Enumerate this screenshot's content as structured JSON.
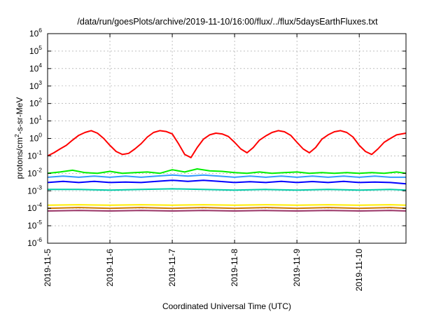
{
  "chart_data": {
    "type": "line",
    "title": "/data/run/goesPlots/archive/2019-11-10/16:00/flux/../flux/5daysEarthFluxes.txt",
    "xlabel": "Coordinated Universal Time (UTC)",
    "ylabel": "protons/cm2-s-sr-MeV",
    "ylabel_parts": {
      "base": "protons/cm",
      "sup": "2",
      "rest": "-s-sr-MeV"
    },
    "x_start": "2019-11-05",
    "x_range_days": [
      0,
      5.75
    ],
    "ylim_exponent": [
      -6,
      6
    ],
    "yscale": "log",
    "grid": true,
    "x_ticks": [
      {
        "day": 0,
        "label": "2019-11-5"
      },
      {
        "day": 1,
        "label": "2019-11-6"
      },
      {
        "day": 2,
        "label": "2019-11-7"
      },
      {
        "day": 3,
        "label": "2019-11-8"
      },
      {
        "day": 4,
        "label": "2019-11-9"
      },
      {
        "day": 5,
        "label": "2019-11-10"
      }
    ],
    "y_ticks": [
      {
        "exp": -6,
        "base": "10",
        "sup": "-6"
      },
      {
        "exp": -5,
        "base": "10",
        "sup": "-5"
      },
      {
        "exp": -4,
        "base": "10",
        "sup": "-4"
      },
      {
        "exp": -3,
        "base": "10",
        "sup": "-3"
      },
      {
        "exp": -2,
        "base": "10",
        "sup": "-2"
      },
      {
        "exp": -1,
        "base": "10",
        "sup": "-1"
      },
      {
        "exp": 0,
        "base": "10",
        "sup": "0"
      },
      {
        "exp": 1,
        "base": "10",
        "sup": "1"
      },
      {
        "exp": 2,
        "base": "10",
        "sup": "2"
      },
      {
        "exp": 3,
        "base": "10",
        "sup": "3"
      },
      {
        "exp": 4,
        "base": "10",
        "sup": "4"
      },
      {
        "exp": 5,
        "base": "10",
        "sup": "5"
      },
      {
        "exp": 6,
        "base": "10",
        "sup": "6"
      }
    ],
    "series": [
      {
        "color": "#ff0000",
        "points": [
          [
            0,
            0.1
          ],
          [
            0.1,
            0.15
          ],
          [
            0.2,
            0.25
          ],
          [
            0.3,
            0.4
          ],
          [
            0.4,
            0.8
          ],
          [
            0.5,
            1.5
          ],
          [
            0.6,
            2.2
          ],
          [
            0.7,
            2.8
          ],
          [
            0.8,
            2.0
          ],
          [
            0.9,
            1.0
          ],
          [
            1.0,
            0.4
          ],
          [
            1.1,
            0.18
          ],
          [
            1.2,
            0.12
          ],
          [
            1.3,
            0.14
          ],
          [
            1.4,
            0.25
          ],
          [
            1.5,
            0.5
          ],
          [
            1.6,
            1.2
          ],
          [
            1.7,
            2.2
          ],
          [
            1.8,
            2.8
          ],
          [
            1.9,
            2.5
          ],
          [
            2.0,
            1.8
          ],
          [
            2.1,
            0.5
          ],
          [
            2.2,
            0.12
          ],
          [
            2.3,
            0.08
          ],
          [
            2.4,
            0.3
          ],
          [
            2.5,
            0.9
          ],
          [
            2.6,
            1.6
          ],
          [
            2.7,
            2.0
          ],
          [
            2.8,
            1.8
          ],
          [
            2.9,
            1.3
          ],
          [
            3.0,
            0.6
          ],
          [
            3.1,
            0.25
          ],
          [
            3.2,
            0.15
          ],
          [
            3.3,
            0.3
          ],
          [
            3.4,
            0.8
          ],
          [
            3.5,
            1.4
          ],
          [
            3.6,
            2.2
          ],
          [
            3.7,
            2.8
          ],
          [
            3.8,
            2.4
          ],
          [
            3.9,
            1.5
          ],
          [
            4.0,
            0.6
          ],
          [
            4.1,
            0.25
          ],
          [
            4.2,
            0.15
          ],
          [
            4.3,
            0.3
          ],
          [
            4.4,
            0.9
          ],
          [
            4.5,
            1.6
          ],
          [
            4.6,
            2.4
          ],
          [
            4.7,
            2.8
          ],
          [
            4.8,
            2.2
          ],
          [
            4.9,
            1.2
          ],
          [
            5.0,
            0.4
          ],
          [
            5.1,
            0.18
          ],
          [
            5.2,
            0.12
          ],
          [
            5.3,
            0.25
          ],
          [
            5.4,
            0.6
          ],
          [
            5.5,
            1.0
          ],
          [
            5.6,
            1.6
          ],
          [
            5.75,
            2.0
          ]
        ]
      },
      {
        "color": "#00ee00",
        "points": [
          [
            0,
            0.01
          ],
          [
            0.2,
            0.012
          ],
          [
            0.4,
            0.015
          ],
          [
            0.6,
            0.011
          ],
          [
            0.8,
            0.01
          ],
          [
            1.0,
            0.013
          ],
          [
            1.2,
            0.01
          ],
          [
            1.4,
            0.011
          ],
          [
            1.6,
            0.012
          ],
          [
            1.8,
            0.01
          ],
          [
            2.0,
            0.016
          ],
          [
            2.2,
            0.012
          ],
          [
            2.4,
            0.018
          ],
          [
            2.6,
            0.014
          ],
          [
            2.8,
            0.013
          ],
          [
            3.0,
            0.011
          ],
          [
            3.2,
            0.01
          ],
          [
            3.4,
            0.012
          ],
          [
            3.6,
            0.01
          ],
          [
            3.8,
            0.011
          ],
          [
            4.0,
            0.012
          ],
          [
            4.2,
            0.01
          ],
          [
            4.4,
            0.011
          ],
          [
            4.6,
            0.01
          ],
          [
            4.8,
            0.011
          ],
          [
            5.0,
            0.01
          ],
          [
            5.2,
            0.011
          ],
          [
            5.4,
            0.01
          ],
          [
            5.6,
            0.012
          ],
          [
            5.75,
            0.01
          ]
        ]
      },
      {
        "color": "#3399ff",
        "points": [
          [
            0,
            0.006
          ],
          [
            0.25,
            0.007
          ],
          [
            0.5,
            0.006
          ],
          [
            0.75,
            0.007
          ],
          [
            1.0,
            0.006
          ],
          [
            1.25,
            0.007
          ],
          [
            1.5,
            0.006
          ],
          [
            1.75,
            0.007
          ],
          [
            2.0,
            0.008
          ],
          [
            2.25,
            0.007
          ],
          [
            2.5,
            0.008
          ],
          [
            2.75,
            0.007
          ],
          [
            3.0,
            0.006
          ],
          [
            3.25,
            0.007
          ],
          [
            3.5,
            0.006
          ],
          [
            3.75,
            0.007
          ],
          [
            4.0,
            0.006
          ],
          [
            4.25,
            0.007
          ],
          [
            4.5,
            0.006
          ],
          [
            4.75,
            0.007
          ],
          [
            5.0,
            0.006
          ],
          [
            5.25,
            0.007
          ],
          [
            5.5,
            0.006
          ],
          [
            5.75,
            0.006
          ]
        ]
      },
      {
        "color": "#0000ff",
        "points": [
          [
            0,
            0.003
          ],
          [
            0.25,
            0.0035
          ],
          [
            0.5,
            0.003
          ],
          [
            0.75,
            0.0035
          ],
          [
            1.0,
            0.003
          ],
          [
            1.25,
            0.0032
          ],
          [
            1.5,
            0.003
          ],
          [
            1.75,
            0.0035
          ],
          [
            2.0,
            0.004
          ],
          [
            2.25,
            0.0035
          ],
          [
            2.5,
            0.004
          ],
          [
            2.75,
            0.0035
          ],
          [
            3.0,
            0.003
          ],
          [
            3.25,
            0.0033
          ],
          [
            3.5,
            0.003
          ],
          [
            3.75,
            0.0035
          ],
          [
            4.0,
            0.003
          ],
          [
            4.25,
            0.0034
          ],
          [
            4.5,
            0.003
          ],
          [
            4.75,
            0.0035
          ],
          [
            5.0,
            0.003
          ],
          [
            5.25,
            0.0032
          ],
          [
            5.5,
            0.003
          ],
          [
            5.75,
            0.0025
          ]
        ]
      },
      {
        "color": "#00ccaa",
        "points": [
          [
            0,
            0.0012
          ],
          [
            0.5,
            0.0012
          ],
          [
            1.0,
            0.0011
          ],
          [
            1.5,
            0.0012
          ],
          [
            2.0,
            0.0013
          ],
          [
            2.5,
            0.0012
          ],
          [
            3.0,
            0.0011
          ],
          [
            3.5,
            0.0012
          ],
          [
            4.0,
            0.0011
          ],
          [
            4.5,
            0.0012
          ],
          [
            5.0,
            0.0011
          ],
          [
            5.5,
            0.0012
          ],
          [
            5.75,
            0.0011
          ]
        ]
      },
      {
        "color": "#ffee00",
        "points": [
          [
            0,
            0.00015
          ],
          [
            0.5,
            0.00016
          ],
          [
            1.0,
            0.00015
          ],
          [
            1.5,
            0.00016
          ],
          [
            2.0,
            0.00015
          ],
          [
            2.5,
            0.00016
          ],
          [
            3.0,
            0.00015
          ],
          [
            3.5,
            0.00016
          ],
          [
            4.0,
            0.00015
          ],
          [
            4.5,
            0.00016
          ],
          [
            5.0,
            0.00015
          ],
          [
            5.5,
            0.00016
          ],
          [
            5.75,
            0.00015
          ]
        ]
      },
      {
        "color": "#cc7700",
        "points": [
          [
            0,
            0.0001
          ],
          [
            0.5,
            0.00011
          ],
          [
            1.0,
            0.0001
          ],
          [
            1.5,
            0.00011
          ],
          [
            2.0,
            0.0001
          ],
          [
            2.5,
            0.00011
          ],
          [
            3.0,
            0.0001
          ],
          [
            3.5,
            0.00011
          ],
          [
            4.0,
            0.0001
          ],
          [
            4.5,
            0.00011
          ],
          [
            5.0,
            0.0001
          ],
          [
            5.5,
            0.00011
          ],
          [
            5.75,
            0.0001
          ]
        ]
      },
      {
        "color": "#993366",
        "points": [
          [
            0,
            7e-05
          ],
          [
            0.5,
            7.5e-05
          ],
          [
            1.0,
            7e-05
          ],
          [
            1.5,
            7.5e-05
          ],
          [
            2.0,
            7e-05
          ],
          [
            2.5,
            7.5e-05
          ],
          [
            3.0,
            7e-05
          ],
          [
            3.5,
            7.5e-05
          ],
          [
            4.0,
            7e-05
          ],
          [
            4.5,
            7.5e-05
          ],
          [
            5.0,
            7e-05
          ],
          [
            5.5,
            7.5e-05
          ],
          [
            5.75,
            7e-05
          ]
        ]
      }
    ]
  }
}
